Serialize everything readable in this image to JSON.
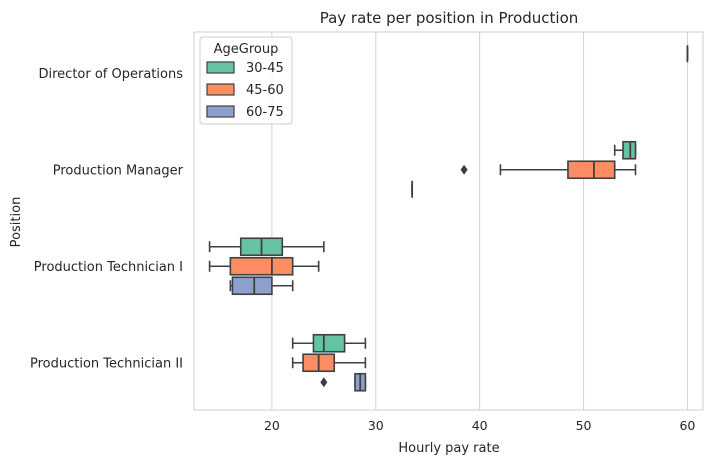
{
  "chart_data": {
    "type": "boxplot",
    "orientation": "horizontal",
    "title": "Pay rate per position in Production",
    "xlabel": "Hourly pay rate",
    "ylabel": "Position",
    "xlim": [
      12.5,
      61.5
    ],
    "xticks": [
      20,
      30,
      40,
      50,
      60
    ],
    "grid": "vertical",
    "legend": {
      "title": "AgeGroup",
      "placement": "top-left",
      "entries": [
        {
          "name": "30-45",
          "color": "#66c2a5"
        },
        {
          "name": "45-60",
          "color": "#fc8d62"
        },
        {
          "name": "60-75",
          "color": "#8da0cb"
        }
      ]
    },
    "categories": [
      "Director of Operations",
      "Production Manager",
      "Production Technician I",
      "Production Technician II"
    ],
    "series": [
      {
        "name": "30-45",
        "boxes": [
          {
            "category": "Director of Operations",
            "min": 60,
            "q1": 60,
            "median": 60,
            "q3": 60,
            "max": 60,
            "outliers": []
          },
          {
            "category": "Production Manager",
            "min": 53,
            "q1": 53.8,
            "median": 54.5,
            "q3": 55,
            "max": 55,
            "outliers": []
          },
          {
            "category": "Production Technician I",
            "min": 14,
            "q1": 17,
            "median": 19,
            "q3": 21,
            "max": 25,
            "outliers": []
          },
          {
            "category": "Production Technician II",
            "min": 22,
            "q1": 24,
            "median": 25,
            "q3": 27,
            "max": 29,
            "outliers": []
          }
        ]
      },
      {
        "name": "45-60",
        "boxes": [
          {
            "category": "Production Manager",
            "min": 42,
            "q1": 48.5,
            "median": 51,
            "q3": 53,
            "max": 55,
            "outliers": [
              38.5
            ]
          },
          {
            "category": "Production Technician I",
            "min": 14,
            "q1": 16,
            "median": 20,
            "q3": 22,
            "max": 24.5,
            "outliers": []
          },
          {
            "category": "Production Technician II",
            "min": 22,
            "q1": 23,
            "median": 24.5,
            "q3": 26,
            "max": 29,
            "outliers": [
              25
            ]
          }
        ]
      },
      {
        "name": "60-75",
        "boxes": [
          {
            "category": "Production Manager",
            "min": 33.5,
            "q1": 33.5,
            "median": 33.5,
            "q3": 33.5,
            "max": 33.5,
            "outliers": []
          },
          {
            "category": "Production Technician I",
            "min": 16,
            "q1": 16.2,
            "median": 18.3,
            "q3": 20,
            "max": 22,
            "outliers": []
          },
          {
            "category": "Production Technician II",
            "min": 28,
            "q1": 28,
            "median": 28.5,
            "q3": 29,
            "max": 29,
            "outliers": []
          }
        ]
      }
    ]
  }
}
